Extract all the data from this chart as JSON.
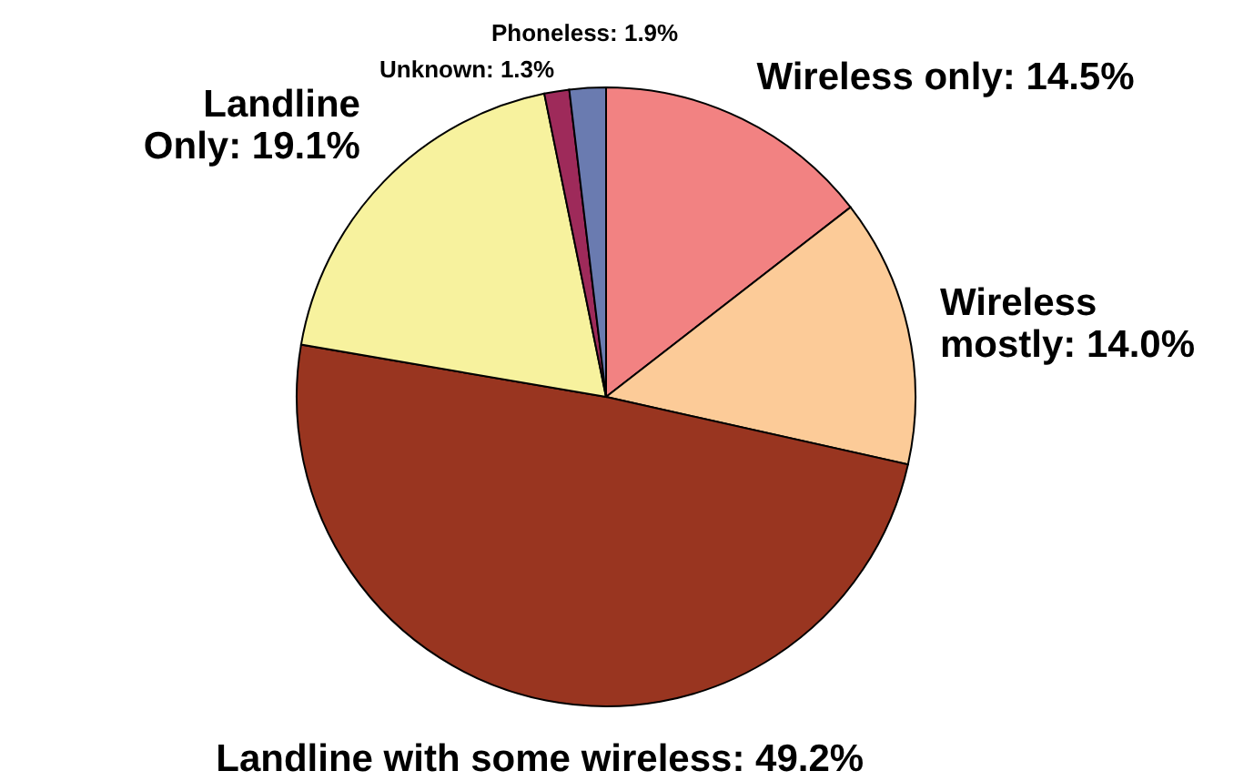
{
  "chart_data": {
    "type": "pie",
    "categories": [
      "Wireless only",
      "Wireless mostly",
      "Landline with some wireless",
      "Landline Only",
      "Unknown",
      "Phoneless"
    ],
    "values": [
      14.5,
      14.0,
      49.2,
      19.1,
      1.3,
      1.9
    ],
    "value_labels": [
      "14.5%",
      "14.0%",
      "49.2%",
      "19.1%",
      "1.3%",
      "1.9%"
    ],
    "colors": [
      "#f28282",
      "#fccb98",
      "#993520",
      "#f7f29e",
      "#9e2a5a",
      "#6a7bb0"
    ]
  }
}
